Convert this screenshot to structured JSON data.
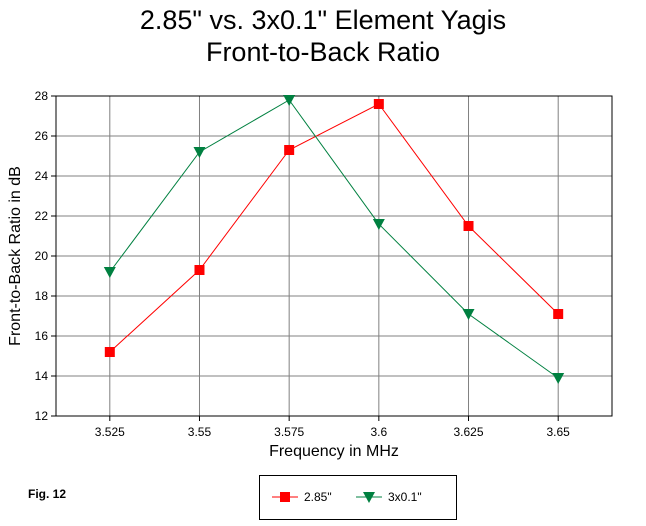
{
  "figure_label": "Fig. 12",
  "chart_data": {
    "type": "line",
    "title": [
      "2.85\" vs. 3x0.1\" Element Yagis",
      "Front-to-Back Ratio"
    ],
    "xlabel": "Frequency in MHz",
    "ylabel": "Front-to-Back Ratio in dB",
    "categories": [
      "3.525",
      "3.55",
      "3.575",
      "3.6",
      "3.625",
      "3.65"
    ],
    "x": [
      3.525,
      3.55,
      3.575,
      3.6,
      3.625,
      3.65
    ],
    "xlim": [
      3.51,
      3.665
    ],
    "ylim": [
      12,
      28
    ],
    "yticks": [
      "12",
      "14",
      "16",
      "18",
      "20",
      "22",
      "24",
      "26",
      "28"
    ],
    "grid": true,
    "legend_position": "bottom-center",
    "series": [
      {
        "name": "2.85\"",
        "color": "#ff0000",
        "marker": "square",
        "values": [
          15.2,
          19.3,
          25.3,
          27.6,
          21.5,
          17.1
        ]
      },
      {
        "name": "3x0.1\"",
        "color": "#008040",
        "marker": "triangle-down",
        "values": [
          19.2,
          25.2,
          27.8,
          21.6,
          17.1,
          13.9
        ]
      }
    ]
  }
}
